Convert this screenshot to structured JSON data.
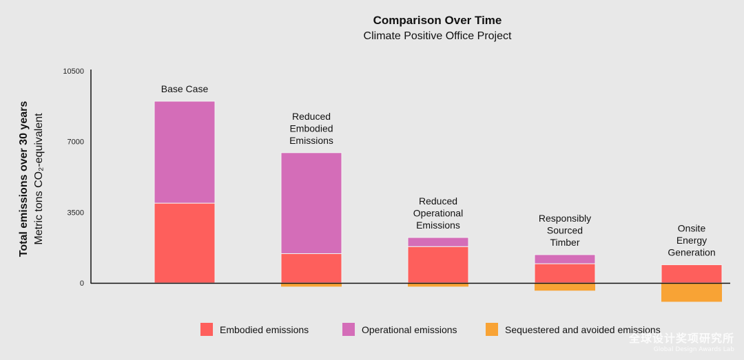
{
  "chart_data": {
    "type": "bar",
    "stacked": true,
    "title": "Comparison Over Time",
    "subtitle": "Climate Positive Office Project",
    "ylabel": "Total emissions over 30 years",
    "ylabel2": "Metric tons CO₂-equivalent",
    "ylim": [
      -1000,
      10500
    ],
    "yticks": [
      0,
      3500,
      7000,
      10500
    ],
    "categories": [
      [
        "Base Case"
      ],
      [
        "Reduced",
        "Embodied",
        "Emissions"
      ],
      [
        "Reduced",
        "Operational",
        "Emissions"
      ],
      [
        "Responsibly",
        "Sourced",
        "Timber"
      ],
      [
        "Onsite",
        "Energy",
        "Generation"
      ]
    ],
    "series": [
      {
        "name": "Embodied emissions",
        "color": "#fe5f5c",
        "values": [
          3950,
          1450,
          1800,
          950,
          900
        ]
      },
      {
        "name": "Operational emissions",
        "color": "#d46db8",
        "values": [
          5050,
          5000,
          450,
          450,
          0
        ]
      },
      {
        "name": "Sequestered and avoided emissions",
        "color": "#f8a335",
        "values": [
          0,
          -150,
          -150,
          -350,
          -900
        ]
      }
    ]
  },
  "watermark": {
    "cn": "全球设计奖项研究所",
    "en": "Global Design Awards Lab"
  }
}
